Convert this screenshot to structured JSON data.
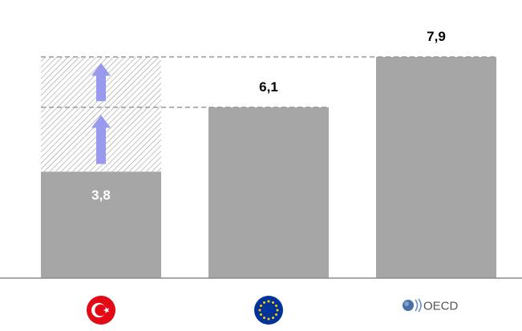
{
  "chart_data": {
    "type": "bar",
    "title": "",
    "xlabel": "",
    "ylabel": "",
    "categories": [
      "Türkiye",
      "EU",
      "OECD"
    ],
    "values": [
      3.8,
      6.1,
      7.9
    ],
    "value_labels": [
      "3,8",
      "6,1",
      "7,9"
    ],
    "ylim": [
      0,
      8.5
    ],
    "grid": false,
    "legend": "none",
    "reference_lines": [
      {
        "value": 6.1,
        "style": "dashed"
      },
      {
        "value": 7.9,
        "style": "dashed"
      }
    ],
    "gap_bands": [
      {
        "from": 3.8,
        "to": 6.1,
        "style": "hatched",
        "arrow": "up"
      },
      {
        "from": 6.1,
        "to": 7.9,
        "style": "hatched",
        "arrow": "up"
      }
    ],
    "category_icons": [
      "turkey-flag-icon",
      "eu-flag-icon",
      "oecd-logo-icon"
    ],
    "logo_text": "OECD"
  },
  "colors": {
    "bar": "#a6a6a6",
    "bar_label_inside": "#ffffff",
    "bar_label_outside": "#000000",
    "dashed_line": "#999999",
    "hatch": "#9a9a9a",
    "arrow": "#9999ee",
    "axis": "#8c8c8c",
    "turkey_red": "#e30a17",
    "eu_blue": "#003399",
    "eu_star": "#ffcc00"
  }
}
